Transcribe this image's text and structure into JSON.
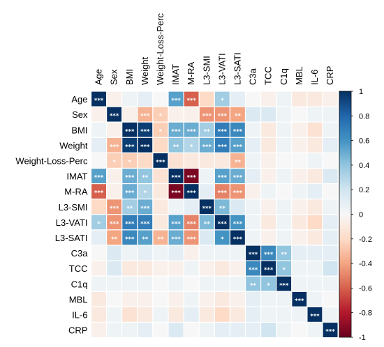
{
  "chart_data": {
    "type": "heatmap",
    "variables": [
      "Age",
      "Sex",
      "BMI",
      "Weight",
      "Weight-Loss-Perc",
      "IMAT",
      "M-RA",
      "L3-SMI",
      "L3-VATI",
      "L3-SATI",
      "C3a",
      "TCC",
      "C1q",
      "MBL",
      "IL-6",
      "CRP"
    ],
    "color_scale": {
      "min": -1,
      "max": 1,
      "ticks": [
        "1",
        "0.8",
        "0.6",
        "0.4",
        "0.2",
        "0",
        "-0.2",
        "-0.4",
        "-0.6",
        "-0.8",
        "-1"
      ],
      "colors": {
        "negative": "#67001f",
        "zero": "#f7f7f7",
        "positive": "#053061"
      }
    },
    "matrix": [
      [
        1.0,
        -0.05,
        0.05,
        0.1,
        0.0,
        0.55,
        -0.6,
        -0.2,
        0.35,
        0.1,
        0.0,
        -0.05,
        0.05,
        -0.1,
        -0.1,
        -0.05
      ],
      [
        -0.05,
        1.0,
        -0.05,
        -0.35,
        -0.25,
        -0.05,
        -0.05,
        -0.45,
        -0.45,
        -0.4,
        0.15,
        0.15,
        0.05,
        0.0,
        0.05,
        0.05
      ],
      [
        0.05,
        -0.05,
        1.0,
        0.95,
        -0.25,
        0.5,
        0.5,
        0.35,
        0.7,
        0.65,
        0.05,
        -0.1,
        0.05,
        -0.05,
        -0.15,
        0.05
      ],
      [
        0.1,
        -0.35,
        0.95,
        1.0,
        -0.2,
        0.4,
        0.3,
        0.5,
        0.7,
        0.55,
        0.1,
        -0.1,
        0.05,
        -0.05,
        -0.1,
        0.1
      ],
      [
        0.0,
        -0.25,
        -0.25,
        -0.2,
        1.0,
        -0.15,
        -0.1,
        -0.1,
        -0.1,
        -0.35,
        0.05,
        -0.05,
        0.0,
        0.0,
        0.05,
        0.0
      ],
      [
        0.55,
        -0.05,
        0.5,
        0.4,
        -0.15,
        1.0,
        -0.95,
        0.05,
        0.55,
        0.5,
        0.1,
        -0.05,
        0.05,
        -0.05,
        -0.1,
        0.15
      ],
      [
        -0.6,
        -0.05,
        0.5,
        0.3,
        -0.1,
        -0.95,
        1.0,
        0.1,
        -0.5,
        -0.45,
        -0.05,
        0.05,
        0.0,
        0.05,
        0.1,
        0.0
      ],
      [
        -0.2,
        -0.45,
        0.35,
        0.5,
        -0.1,
        0.05,
        0.1,
        1.0,
        0.45,
        0.15,
        0.05,
        -0.05,
        0.05,
        -0.05,
        -0.1,
        0.05
      ],
      [
        0.35,
        -0.45,
        0.7,
        0.7,
        -0.1,
        0.55,
        -0.5,
        0.45,
        1.0,
        0.6,
        0.05,
        -0.1,
        0.05,
        -0.1,
        -0.2,
        0.1
      ],
      [
        0.1,
        -0.4,
        0.65,
        0.55,
        -0.35,
        0.5,
        -0.45,
        0.15,
        0.6,
        1.0,
        0.05,
        -0.05,
        0.05,
        -0.05,
        -0.1,
        0.1
      ],
      [
        0.0,
        0.15,
        0.05,
        0.1,
        0.05,
        0.1,
        -0.05,
        0.05,
        0.05,
        0.05,
        1.0,
        0.65,
        0.4,
        0.1,
        0.1,
        0.1
      ],
      [
        -0.05,
        0.15,
        -0.1,
        -0.1,
        -0.05,
        -0.05,
        0.05,
        -0.05,
        -0.1,
        -0.05,
        0.65,
        1.0,
        0.4,
        0.05,
        0.05,
        0.2
      ],
      [
        0.05,
        0.05,
        0.05,
        0.05,
        0.0,
        0.05,
        0.0,
        0.05,
        0.05,
        0.05,
        0.4,
        0.4,
        1.0,
        0.05,
        0.05,
        0.05
      ],
      [
        -0.1,
        0.0,
        -0.05,
        -0.05,
        0.0,
        -0.05,
        0.05,
        -0.05,
        -0.1,
        -0.05,
        0.1,
        0.05,
        0.05,
        1.0,
        0.05,
        0.0
      ],
      [
        -0.1,
        0.05,
        -0.15,
        -0.1,
        0.05,
        -0.1,
        0.1,
        -0.1,
        -0.2,
        -0.1,
        0.1,
        0.05,
        0.05,
        0.05,
        1.0,
        0.05
      ],
      [
        -0.05,
        0.05,
        0.05,
        0.1,
        0.0,
        0.15,
        0.0,
        0.05,
        0.1,
        0.1,
        0.1,
        0.2,
        0.05,
        0.0,
        0.05,
        1.0
      ]
    ],
    "significance": [
      [
        "***",
        "",
        "",
        "",
        "",
        "***",
        "***",
        "",
        "*",
        "",
        "",
        "",
        "",
        "",
        "",
        ""
      ],
      [
        "",
        "***",
        "",
        "***",
        "*",
        "",
        "",
        "***",
        "***",
        "**",
        "",
        "",
        "",
        "",
        "",
        ""
      ],
      [
        "",
        "",
        "***",
        "***",
        "*",
        "***",
        "***",
        "**",
        "***",
        "***",
        "",
        "",
        "",
        "",
        "",
        ""
      ],
      [
        "",
        "***",
        "***",
        "***",
        "",
        "**",
        "*",
        "***",
        "***",
        "***",
        "",
        "",
        "",
        "",
        "",
        ""
      ],
      [
        "",
        "*",
        "*",
        "",
        "***",
        "",
        "",
        "",
        "",
        "**",
        "",
        "",
        "",
        "",
        "",
        ""
      ],
      [
        "***",
        "",
        "***",
        "**",
        "",
        "***",
        "***",
        "",
        "***",
        "***",
        "",
        "",
        "",
        "",
        "",
        ""
      ],
      [
        "***",
        "",
        "***",
        "*",
        "",
        "***",
        "***",
        "",
        "***",
        "***",
        "",
        "",
        "",
        "",
        "",
        ""
      ],
      [
        "",
        "***",
        "**",
        "***",
        "",
        "",
        "",
        "***",
        "**",
        "",
        "",
        "",
        "",
        "",
        "",
        ""
      ],
      [
        "*",
        "***",
        "***",
        "***",
        "",
        "***",
        "***",
        "**",
        "***",
        "***",
        "",
        "",
        "",
        "",
        "",
        ""
      ],
      [
        "",
        "**",
        "***",
        "**",
        "**",
        "***",
        "***",
        "",
        "*",
        "***",
        "",
        "",
        "",
        "",
        "",
        ""
      ],
      [
        "",
        "",
        "",
        "",
        "",
        "",
        "",
        "",
        "",
        "",
        "***",
        "***",
        "**",
        "",
        "",
        ""
      ],
      [
        "",
        "",
        "",
        "",
        "",
        "",
        "",
        "",
        "",
        "",
        "***",
        "***",
        "*",
        "",
        "",
        ""
      ],
      [
        "",
        "",
        "",
        "",
        "",
        "",
        "",
        "",
        "",
        "",
        "**",
        "*",
        "***",
        "",
        "",
        ""
      ],
      [
        "",
        "",
        "",
        "",
        "",
        "",
        "",
        "",
        "",
        "",
        "",
        "",
        "",
        "***",
        "",
        ""
      ],
      [
        "",
        "",
        "",
        "",
        "",
        "",
        "",
        "",
        "",
        "",
        "",
        "",
        "",
        "",
        "***",
        ""
      ],
      [
        "",
        "",
        "",
        "",
        "",
        "",
        "",
        "",
        "",
        "",
        "",
        "",
        "",
        "",
        "",
        "***"
      ]
    ]
  }
}
